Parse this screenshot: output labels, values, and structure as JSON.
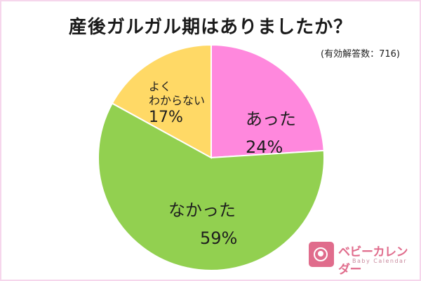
{
  "title": "産後ガルガル期はありましたか？",
  "sample_note": "(有効解答数：716)",
  "logo": {
    "jp": "ベビーカレンダー",
    "en": "Baby Calendar",
    "color": "#e06c8c"
  },
  "labels": {
    "yes": {
      "name": "あった",
      "pct": "24%"
    },
    "no": {
      "name": "なかった",
      "pct": "59%"
    },
    "unsure": {
      "line1": "よく",
      "line2": "わからない",
      "pct": "17%"
    }
  },
  "chart_data": {
    "type": "pie",
    "title": "産後ガルガル期はありましたか？",
    "subtitle": "(有効解答数：716)",
    "categories": [
      "あった",
      "なかった",
      "よくわからない"
    ],
    "values": [
      24,
      59,
      17
    ],
    "colors": [
      "#FF88DD",
      "#92D050",
      "#FFD966"
    ],
    "unit": "%",
    "start_angle": "12 o'clock, clockwise",
    "legend": "none (labels inside slices)",
    "n": 716
  }
}
